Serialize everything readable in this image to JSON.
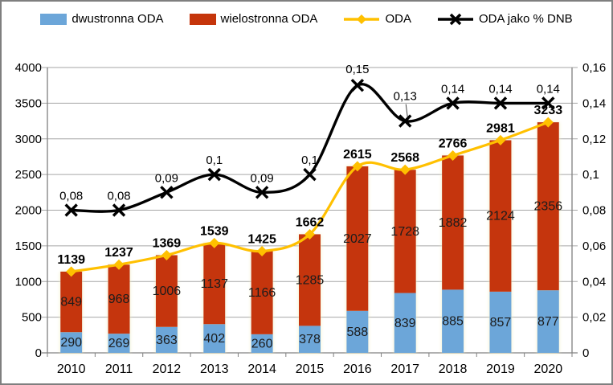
{
  "chart_data": {
    "type": "combo-stacked-bar-line",
    "title": "",
    "categories": [
      "2010",
      "2011",
      "2012",
      "2013",
      "2014",
      "2015",
      "2016",
      "2017",
      "2018",
      "2019",
      "2020"
    ],
    "series": [
      {
        "name": "dwustronna ODA",
        "chart": "bar",
        "stack": "ODA",
        "axis": "left",
        "color": "#6CA6D9",
        "values": [
          290,
          269,
          363,
          402,
          260,
          378,
          588,
          839,
          885,
          857,
          877
        ],
        "labels": [
          "290",
          "269",
          "363",
          "402",
          "260",
          "378",
          "588",
          "839",
          "885",
          "857",
          "877"
        ]
      },
      {
        "name": "wielostronna ODA",
        "chart": "bar",
        "stack": "ODA",
        "axis": "left",
        "color": "#C5350B",
        "values": [
          849,
          968,
          1006,
          1137,
          1166,
          1285,
          2027,
          1728,
          1882,
          2124,
          2356
        ],
        "labels": [
          "849",
          "968",
          "1006",
          "1137",
          "1166",
          "1285",
          "2027",
          "1728",
          "1882",
          "2124",
          "2356"
        ]
      },
      {
        "name": "ODA",
        "chart": "line",
        "marker": "diamond",
        "axis": "left",
        "color": "#FFC000",
        "values": [
          1139,
          1237,
          1369,
          1539,
          1425,
          1662,
          2615,
          2568,
          2766,
          2981,
          3233
        ],
        "labels": [
          "1139",
          "1237",
          "1369",
          "1539",
          "1425",
          "1662",
          "2615",
          "2568",
          "2766",
          "2981",
          "3233"
        ]
      },
      {
        "name": "ODA jako % DNB",
        "chart": "line",
        "marker": "x",
        "axis": "right",
        "color": "#000000",
        "values": [
          0.08,
          0.08,
          0.09,
          0.1,
          0.09,
          0.1,
          0.15,
          0.13,
          0.14,
          0.14,
          0.14
        ],
        "labels": [
          "0,08",
          "0,08",
          "0,09",
          "0,1",
          "0,09",
          "0,1",
          "0,15",
          "0,13",
          "0,14",
          "0,14",
          "0,14"
        ]
      }
    ],
    "left_axis": {
      "min": 0,
      "max": 4000,
      "step": 500,
      "ticks": [
        "0",
        "500",
        "1000",
        "1500",
        "2000",
        "2500",
        "3000",
        "3500",
        "4000"
      ]
    },
    "right_axis": {
      "min": 0,
      "max": 0.16,
      "step": 0.02,
      "ticks": [
        "0",
        "0,02",
        "0,04",
        "0,06",
        "0,08",
        "0,1",
        "0,12",
        "0,14",
        "0,16"
      ]
    },
    "grid": true,
    "legend_position": "top",
    "colors": {
      "gridline": "#A6A6A6",
      "axis": "#808080",
      "frame_border": "#7F7F7F",
      "background": "#FFFFFF",
      "bar_glow": "#F3F0C4",
      "label": "#000000"
    }
  }
}
